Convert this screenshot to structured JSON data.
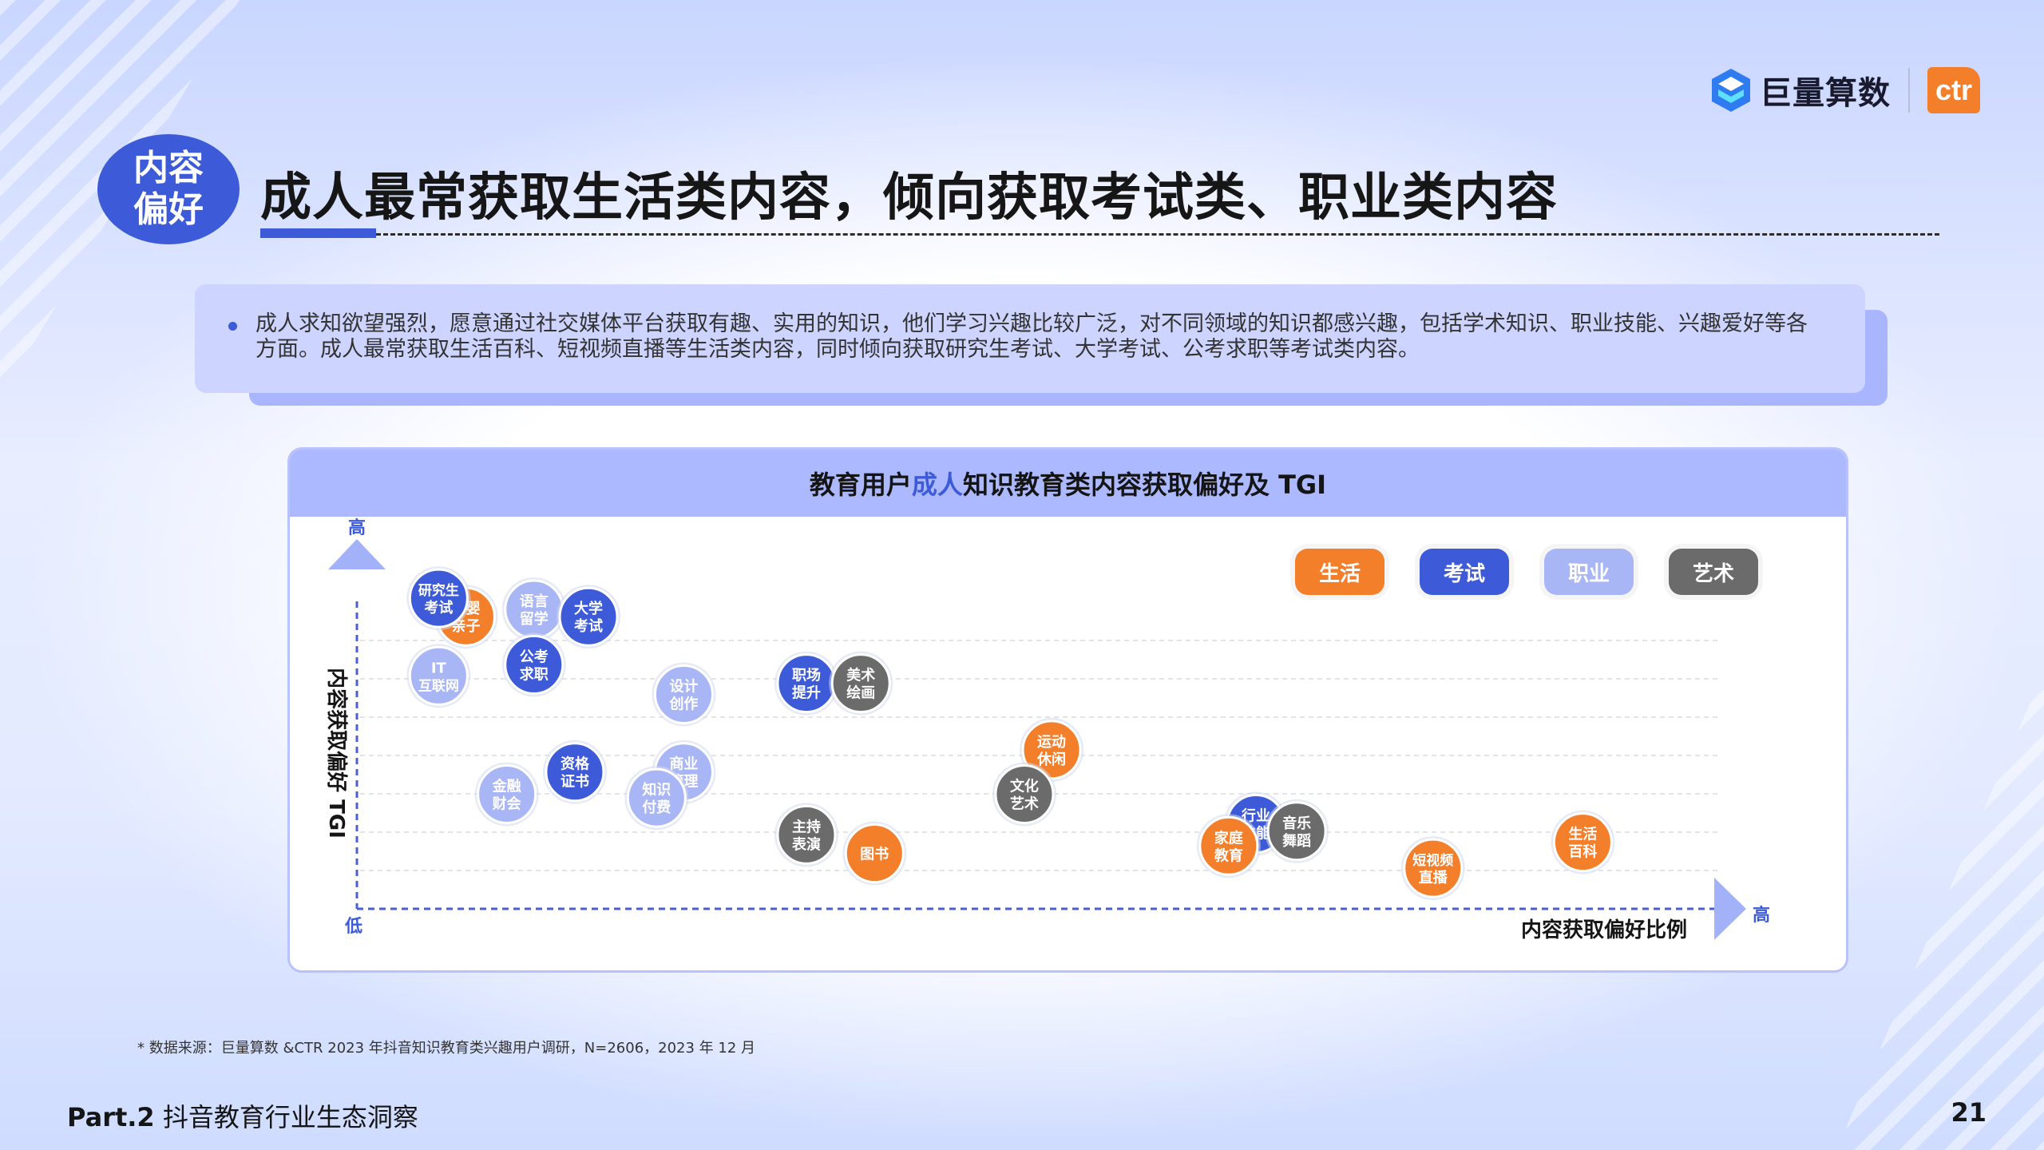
{
  "header": {
    "brand_name": "巨量算数",
    "partner_logo": "ctr",
    "section_tag": "内容偏好",
    "title": "成人最常获取生活类内容，倾向获取考试类、职业类内容"
  },
  "summary": {
    "text": "成人求知欲望强烈，愿意通过社交媒体平台获取有趣、实用的知识，他们学习兴趣比较广泛，对不同领域的知识都感兴趣，包括学术知识、职业技能、兴趣爱好等各方面。成人最常获取生活百科、短视频直播等生活类内容，同时倾向获取研究生考试、大学考试、公考求职等考试类内容。"
  },
  "chart": {
    "title_pre": "教育用户",
    "title_highlight": "成人",
    "title_post": "知识教育类内容获取偏好及 TGI",
    "y_axis_label": "内容获取偏好 TGI",
    "y_high": "高",
    "origin_low": "低",
    "x_axis_label": "内容获取偏好比例",
    "x_high": "高"
  },
  "colors": {
    "生活": "#f47f2b",
    "考试": "#3d5bd9",
    "职业": "#a9b6f5",
    "艺术": "#6b6b6b"
  },
  "chart_data": {
    "type": "scatter",
    "xlabel": "内容获取偏好比例",
    "ylabel": "内容获取偏好 TGI",
    "xlim": [
      0,
      100
    ],
    "ylim": [
      0,
      100
    ],
    "grid": true,
    "legend_position": "top-right",
    "categories": [
      "生活",
      "考试",
      "职业",
      "艺术"
    ],
    "points": [
      {
        "label": "母婴\n亲子",
        "category": "生活",
        "x": 8,
        "y": 79
      },
      {
        "label": "研究生\n考试",
        "category": "考试",
        "x": 6,
        "y": 84
      },
      {
        "label": "语言\n留学",
        "category": "职业",
        "x": 13,
        "y": 81
      },
      {
        "label": "大学\n考试",
        "category": "考试",
        "x": 17,
        "y": 79
      },
      {
        "label": "IT\n互联网",
        "category": "职业",
        "x": 6,
        "y": 63
      },
      {
        "label": "公考\n求职",
        "category": "考试",
        "x": 13,
        "y": 66
      },
      {
        "label": "设计\n创作",
        "category": "职业",
        "x": 24,
        "y": 58
      },
      {
        "label": "职场\n提升",
        "category": "考试",
        "x": 33,
        "y": 61
      },
      {
        "label": "美术\n绘画",
        "category": "艺术",
        "x": 37,
        "y": 61
      },
      {
        "label": "金融\n财会",
        "category": "职业",
        "x": 11,
        "y": 31
      },
      {
        "label": "资格\n证书",
        "category": "考试",
        "x": 16,
        "y": 37
      },
      {
        "label": "商业\n管理",
        "category": "职业",
        "x": 24,
        "y": 37
      },
      {
        "label": "知识\n付费",
        "category": "职业",
        "x": 22,
        "y": 30
      },
      {
        "label": "主持\n表演",
        "category": "艺术",
        "x": 33,
        "y": 20
      },
      {
        "label": "图书",
        "category": "生活",
        "x": 38,
        "y": 15
      },
      {
        "label": "运动\n休闲",
        "category": "生活",
        "x": 51,
        "y": 43
      },
      {
        "label": "文化\n艺术",
        "category": "艺术",
        "x": 49,
        "y": 31
      },
      {
        "label": "行业\n技能",
        "category": "考试",
        "x": 66,
        "y": 23
      },
      {
        "label": "音乐\n舞蹈",
        "category": "艺术",
        "x": 69,
        "y": 21
      },
      {
        "label": "家庭\n教育",
        "category": "生活",
        "x": 64,
        "y": 17
      },
      {
        "label": "短视频\n直播",
        "category": "生活",
        "x": 79,
        "y": 11
      },
      {
        "label": "生活\n百科",
        "category": "生活",
        "x": 90,
        "y": 18
      }
    ]
  },
  "footnote": "* 数据来源：巨量算数 &CTR 2023 年抖音知识教育类兴趣用户调研，N=2606，2023 年 12 月",
  "footer": {
    "part": "Part.2",
    "section": "抖音教育行业生态洞察",
    "page_number": "21"
  }
}
